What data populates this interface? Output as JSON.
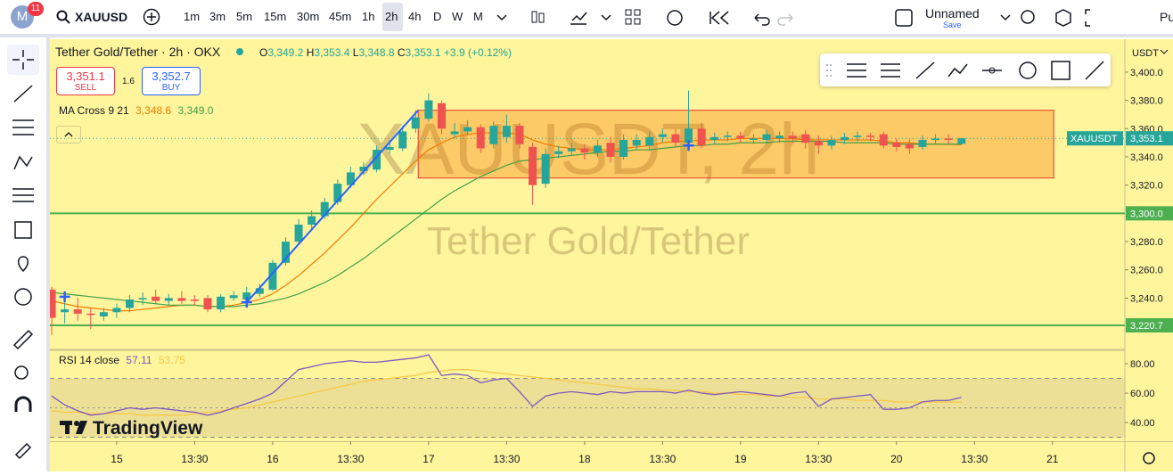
{
  "toolbar": {
    "avatar": "M",
    "badge": "11",
    "symbol": "XAUUSD",
    "intervals": [
      "1m",
      "3m",
      "5m",
      "15m",
      "30m",
      "45m",
      "1h",
      "2h",
      "4h",
      "D",
      "W",
      "M"
    ],
    "layout_name": "Unnamed",
    "save": "Save",
    "cut_text": "Pu"
  },
  "legend": {
    "title": "Tether Gold/Tether · 2h · OKX",
    "o_label": "O",
    "open": "3,349.2",
    "h_label": "H",
    "high": "3,353.4",
    "l_label": "L",
    "low": "3,348.8",
    "c_label": "C",
    "close": "3,353.1",
    "change": "+3.9 (+0.12%)"
  },
  "trade": {
    "sell_price": "3,351.1",
    "sell": "SELL",
    "spread": "1.6",
    "buy_price": "3,352.7",
    "buy": "BUY"
  },
  "indicators": {
    "ma_name": "MA Cross 9 21",
    "ma9_value": "3,348.6",
    "ma21_value": "3,349.0",
    "rsi_name": "RSI 14 close",
    "rsi_value": "57.11",
    "rsi_ma_value": "53.75"
  },
  "currency": "USDT",
  "watermark": {
    "symbol": "XAUUSDT, 2h",
    "name": "Tether Gold/Tether"
  },
  "brand": "TradingView",
  "chart_data": [
    {
      "type": "candlestick",
      "x": [
        -5,
        -4,
        -3,
        -2,
        -1,
        0,
        1,
        2,
        3,
        4,
        5,
        6,
        7,
        8,
        9,
        10,
        11,
        12,
        13,
        14,
        15,
        16,
        17,
        18,
        19,
        20,
        21,
        22,
        23,
        24,
        25,
        26,
        27,
        28,
        29,
        30,
        31,
        32,
        33,
        34,
        35,
        36,
        37,
        38,
        39,
        40,
        41,
        42,
        43,
        44,
        45,
        46,
        47,
        48,
        49,
        50,
        51,
        52,
        53,
        54,
        55,
        56,
        57,
        58,
        59,
        60,
        61,
        62,
        63,
        64,
        65
      ],
      "open": [
        3246,
        3230,
        3232,
        3229,
        3227,
        3230,
        3233,
        3239,
        3241,
        3238,
        3240,
        3239,
        3240,
        3232,
        3240,
        3239,
        3243,
        3246,
        3265,
        3280,
        3292,
        3298,
        3308,
        3320,
        3330,
        3331,
        3345,
        3346,
        3360,
        3367,
        3378,
        3356,
        3358,
        3361,
        3349,
        3354,
        3362,
        3347,
        3321,
        3342,
        3344,
        3346,
        3343,
        3350,
        3340,
        3348,
        3348,
        3354,
        3356,
        3350,
        3360,
        3352,
        3354,
        3355,
        3352,
        3352,
        3353,
        3355,
        3356,
        3351,
        3348,
        3352,
        3354,
        3355,
        3356,
        3350,
        3349,
        3347,
        3352,
        3353,
        3349.2
      ],
      "high": [
        3248,
        3238,
        3240,
        3233,
        3233,
        3236,
        3242,
        3244,
        3246,
        3243,
        3245,
        3242,
        3242,
        3243,
        3245,
        3248,
        3250,
        3267,
        3283,
        3296,
        3302,
        3311,
        3324,
        3333,
        3336,
        3348,
        3352,
        3362,
        3373,
        3385,
        3380,
        3364,
        3366,
        3363,
        3365,
        3370,
        3364,
        3350,
        3346,
        3348,
        3350,
        3349,
        3352,
        3354,
        3356,
        3356,
        3358,
        3360,
        3360,
        3387,
        3364,
        3357,
        3358,
        3358,
        3356,
        3359,
        3358,
        3358,
        3359,
        3355,
        3355,
        3357,
        3358,
        3357,
        3358,
        3353,
        3352,
        3355,
        3356,
        3356,
        3353.4
      ],
      "low": [
        3214,
        3222,
        3224,
        3218,
        3224,
        3226,
        3230,
        3235,
        3236,
        3235,
        3236,
        3235,
        3230,
        3230,
        3238,
        3237,
        3241,
        3245,
        3263,
        3278,
        3289,
        3296,
        3306,
        3318,
        3327,
        3329,
        3342,
        3344,
        3357,
        3365,
        3356,
        3353,
        3355,
        3343,
        3346,
        3350,
        3346,
        3306,
        3318,
        3339,
        3341,
        3338,
        3340,
        3336,
        3338,
        3345,
        3344,
        3350,
        3347,
        3346,
        3346,
        3349,
        3351,
        3350,
        3349,
        3349,
        3350,
        3350,
        3346,
        3342,
        3345,
        3349,
        3351,
        3351,
        3346,
        3344,
        3342,
        3345,
        3349,
        3349,
        3348.8
      ],
      "close": [
        3226,
        3232,
        3229,
        3228,
        3230,
        3233,
        3239,
        3240,
        3238,
        3240,
        3238,
        3238,
        3232,
        3241,
        3242,
        3244,
        3247,
        3265,
        3280,
        3292,
        3298,
        3308,
        3321,
        3329,
        3333,
        3345,
        3347,
        3358,
        3368,
        3380,
        3360,
        3358,
        3361,
        3346,
        3362,
        3362,
        3349,
        3320,
        3342,
        3344,
        3346,
        3343,
        3348,
        3340,
        3352,
        3352,
        3354,
        3356,
        3350,
        3360,
        3348,
        3354,
        3355,
        3353,
        3353,
        3356,
        3355,
        3353,
        3350,
        3348,
        3352,
        3354,
        3355,
        3354,
        3348,
        3347,
        3346,
        3352,
        3353,
        3352,
        3353.1
      ],
      "up_color": "#26a69a",
      "down_color": "#ef5350",
      "overlays": [
        {
          "color": "#f57c00",
          "values": [
            3238,
            3236,
            3234,
            3233,
            3232,
            3231,
            3231,
            3232,
            3233,
            3234,
            3235,
            3235,
            3234,
            3234,
            3235,
            3237,
            3239,
            3243,
            3249,
            3256,
            3264,
            3272,
            3281,
            3290,
            3300,
            3310,
            3319,
            3328,
            3337,
            3345,
            3350,
            3354,
            3356,
            3357,
            3357,
            3357,
            3356,
            3352,
            3349,
            3347,
            3346,
            3345,
            3345,
            3345,
            3346,
            3347,
            3348,
            3350,
            3351,
            3351,
            3352,
            3352,
            3352,
            3353,
            3353,
            3353,
            3353,
            3353,
            3352,
            3352,
            3352,
            3352,
            3352,
            3352,
            3351,
            3350,
            3350,
            3349,
            3349,
            3349,
            3348.6
          ]
        },
        {
          "color": "#43a047",
          "values": [
            3244,
            3243,
            3242,
            3241,
            3240,
            3239,
            3238,
            3237,
            3236,
            3235,
            3235,
            3235,
            3234,
            3234,
            3234,
            3235,
            3236,
            3238,
            3240,
            3243,
            3247,
            3251,
            3256,
            3262,
            3268,
            3275,
            3282,
            3289,
            3296,
            3303,
            3310,
            3316,
            3321,
            3326,
            3330,
            3334,
            3337,
            3338,
            3339,
            3340,
            3341,
            3342,
            3343,
            3344,
            3344,
            3345,
            3345,
            3346,
            3347,
            3348,
            3348,
            3349,
            3349,
            3350,
            3350,
            3350,
            3351,
            3351,
            3351,
            3351,
            3351,
            3350,
            3350,
            3350,
            3350,
            3349,
            3349,
            3349,
            3349,
            3349,
            3349.0
          ]
        }
      ],
      "xlim": [
        -5.14,
        77.57
      ],
      "xticks": [
        {
          "value": 0,
          "label": "15"
        },
        {
          "value": 6,
          "label": "13:30"
        },
        {
          "value": 12,
          "label": "16"
        },
        {
          "value": 18,
          "label": "13:30"
        },
        {
          "value": 24,
          "label": "17"
        },
        {
          "value": 30,
          "label": "13:30"
        },
        {
          "value": 36,
          "label": "18"
        },
        {
          "value": 42,
          "label": "13:30"
        },
        {
          "value": 48,
          "label": "19"
        },
        {
          "value": 54,
          "label": "13:30"
        },
        {
          "value": 60,
          "label": "20"
        },
        {
          "value": 66,
          "label": "13:30"
        },
        {
          "value": 72,
          "label": "21"
        }
      ],
      "ylim": [
        3206.8,
        3423.3
      ],
      "yticks": [
        {
          "value": 3240,
          "label": "3,240.0"
        },
        {
          "value": 3260,
          "label": "3,260.0"
        },
        {
          "value": 3280,
          "label": "3,280.0"
        },
        {
          "value": 3320,
          "label": "3,320.0"
        },
        {
          "value": 3340,
          "label": "3,340.0"
        },
        {
          "value": 3360,
          "label": "3,360.0"
        },
        {
          "value": 3380,
          "label": "3,380.0"
        },
        {
          "value": 3400,
          "label": "3,400.0"
        }
      ],
      "levels": [
        {
          "value": 3300,
          "label": "3,300.0",
          "color": "#4caf50"
        },
        {
          "value": 3220.7,
          "label": "3,220.7",
          "color": "#4caf50"
        }
      ],
      "last_price": {
        "value": 3353.1,
        "label": "3,353.1",
        "tag": "XAUUSDT",
        "color": "#26a69a"
      },
      "rectangle": {
        "x": [
          23.2,
          72.1
        ],
        "y": [
          3325,
          3373
        ],
        "color": "#f57c00"
      },
      "trendline": {
        "x": [
          10,
          23.2
        ],
        "y": [
          3237,
          3373
        ],
        "color": "#2962ff"
      },
      "markers": {
        "x": [
          -4,
          10,
          44
        ],
        "y": [
          3241,
          3237,
          3348
        ],
        "color": "#2962ff"
      }
    },
    {
      "type": "line",
      "x": [
        -5,
        -4,
        -3,
        -2,
        -1,
        0,
        1,
        2,
        3,
        4,
        5,
        6,
        7,
        8,
        9,
        10,
        11,
        12,
        13,
        14,
        15,
        16,
        17,
        18,
        19,
        20,
        21,
        22,
        23,
        24,
        25,
        26,
        27,
        28,
        29,
        30,
        31,
        32,
        33,
        34,
        35,
        36,
        37,
        38,
        39,
        40,
        41,
        42,
        43,
        44,
        45,
        46,
        47,
        48,
        49,
        50,
        51,
        52,
        53,
        54,
        55,
        56,
        57,
        58,
        59,
        60,
        61,
        62,
        63,
        64,
        65
      ],
      "series": [
        {
          "color": "#7e57c2",
          "values": [
            58,
            52,
            48,
            45,
            46,
            48,
            50,
            49,
            50,
            49,
            48,
            47,
            45,
            47,
            50,
            53,
            56,
            60,
            68,
            76,
            78,
            80,
            81,
            82,
            81,
            81,
            82,
            83,
            84,
            86,
            72,
            73,
            72,
            67,
            69,
            70,
            61,
            51,
            58,
            60,
            61,
            60,
            59,
            61,
            60,
            61,
            61,
            61,
            60,
            62,
            60,
            59,
            60,
            61,
            60,
            59,
            58,
            60,
            61,
            51,
            56,
            57,
            58,
            59,
            49,
            49,
            50,
            54,
            55,
            55,
            57.11
          ]
        },
        {
          "color": "#f9c846",
          "values": [
            48,
            47,
            47,
            46,
            46,
            46,
            46,
            45,
            45,
            45,
            45,
            46,
            47,
            48,
            49,
            50,
            52,
            54,
            56,
            58,
            60,
            62,
            64,
            66,
            68,
            69,
            70,
            71,
            72,
            74,
            75,
            76,
            76,
            75,
            74,
            73,
            72,
            71,
            70,
            69,
            68,
            67,
            66,
            65,
            64,
            63,
            63,
            62,
            62,
            61,
            61,
            60,
            60,
            59,
            59,
            58,
            58,
            57,
            57,
            56,
            56,
            56,
            55,
            55,
            55,
            54,
            54,
            54,
            54,
            54,
            53.75
          ]
        }
      ],
      "xlim": [
        -5.14,
        77.57
      ],
      "ylim": [
        27.3,
        88.5
      ],
      "yticks": [
        {
          "value": 80,
          "label": "80.00"
        },
        {
          "value": 60,
          "label": "60.00"
        },
        {
          "value": 40,
          "label": "40.00"
        }
      ],
      "band": [
        30,
        70
      ],
      "midline": 50
    }
  ]
}
